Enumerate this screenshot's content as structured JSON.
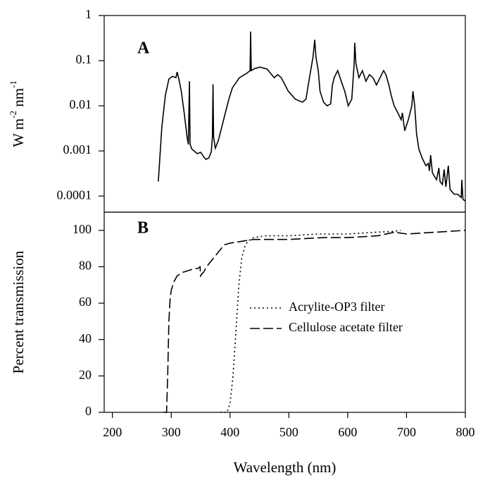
{
  "chart_data": [
    {
      "type": "line",
      "label": "A",
      "ylabel": [
        "W m",
        "-2",
        " nm",
        "-1"
      ],
      "yscale": "log",
      "xlim": [
        186,
        800
      ],
      "ylim": [
        4.4e-05,
        1
      ],
      "yticks": [
        0.0001,
        0.001,
        0.01,
        0.1,
        1
      ],
      "series": [
        {
          "color": "#000000",
          "linestyle": "solid",
          "x": [
            278,
            284,
            290,
            296,
            302,
            308,
            310,
            313,
            317,
            322,
            327,
            329,
            331,
            332,
            335,
            339,
            344,
            350,
            356,
            359,
            364,
            368,
            370,
            371,
            372,
            375,
            380,
            386,
            392,
            398,
            404,
            416,
            428,
            434,
            435,
            436,
            442,
            451,
            463,
            475,
            481,
            487,
            499,
            511,
            523,
            529,
            535,
            541,
            544,
            546,
            550,
            553,
            559,
            565,
            571,
            574,
            577,
            583,
            589,
            595,
            601,
            607,
            611,
            612,
            614,
            619,
            625,
            631,
            637,
            643,
            649,
            655,
            661,
            665,
            670,
            674,
            679,
            685,
            691,
            693,
            697,
            703,
            709,
            711,
            714,
            717,
            721,
            727,
            733,
            737,
            739,
            741,
            744,
            747,
            751,
            755,
            757,
            761,
            764,
            767,
            771,
            774,
            781,
            787,
            793,
            794,
            796,
            800
          ],
          "values": [
            0.00021,
            0.0034,
            0.017,
            0.039,
            0.045,
            0.042,
            0.056,
            0.039,
            0.021,
            0.007,
            0.002,
            0.0014,
            0.035,
            0.0014,
            0.0011,
            0.001,
            0.00087,
            0.00093,
            0.00072,
            0.00065,
            0.0007,
            0.00096,
            0.002,
            0.03,
            0.002,
            0.00115,
            0.0017,
            0.0034,
            0.007,
            0.014,
            0.025,
            0.042,
            0.052,
            0.06,
            0.44,
            0.06,
            0.067,
            0.072,
            0.065,
            0.042,
            0.049,
            0.042,
            0.021,
            0.014,
            0.012,
            0.014,
            0.042,
            0.12,
            0.29,
            0.12,
            0.06,
            0.021,
            0.012,
            0.01,
            0.011,
            0.029,
            0.042,
            0.06,
            0.035,
            0.021,
            0.01,
            0.014,
            0.087,
            0.25,
            0.087,
            0.042,
            0.06,
            0.035,
            0.049,
            0.042,
            0.029,
            0.042,
            0.06,
            0.049,
            0.029,
            0.017,
            0.01,
            0.0071,
            0.0049,
            0.007,
            0.0028,
            0.0049,
            0.01,
            0.021,
            0.01,
            0.0024,
            0.0011,
            0.00068,
            0.00047,
            0.00053,
            0.00036,
            0.00081,
            0.00033,
            0.00028,
            0.00023,
            0.00042,
            0.00021,
            0.00018,
            0.00039,
            0.00016,
            0.00047,
            0.00014,
            0.00011,
            0.00011,
            9.3e-05,
            0.00023,
            8.4e-05,
            7.8e-05
          ]
        }
      ]
    },
    {
      "type": "line",
      "label": "B",
      "ylabel": [
        "Percent transmission"
      ],
      "xlabel": "Wavelength (nm)",
      "xlim": [
        186,
        800
      ],
      "ylim": [
        0,
        110
      ],
      "xticks": [
        200,
        300,
        400,
        500,
        600,
        700,
        800
      ],
      "yticks": [
        0,
        20,
        40,
        60,
        80,
        100
      ],
      "legend": "right",
      "series": [
        {
          "name": "Acrylite-OP3 filter",
          "color": "#000000",
          "linestyle": "dotted",
          "x": [
            383,
            395,
            400,
            405,
            410,
            415,
            420,
            425,
            430,
            440,
            460,
            500,
            550,
            600,
            650,
            680,
            690
          ],
          "values": [
            0,
            0,
            5,
            20,
            45,
            70,
            85,
            91,
            94,
            96,
            97,
            97,
            98,
            98,
            99,
            99.5,
            100
          ]
        },
        {
          "name": "Cellulose acetate filter",
          "color": "#000000",
          "linestyle": "dashed",
          "x": [
            287,
            292,
            294,
            296,
            298,
            300,
            305,
            310,
            320,
            330,
            340,
            345,
            349,
            350,
            352,
            355,
            360,
            370,
            380,
            390,
            400,
            420,
            440,
            460,
            500,
            560,
            600,
            650,
            680,
            700,
            750,
            800
          ],
          "values": [
            0,
            0,
            20,
            50,
            62,
            67,
            72,
            75,
            77,
            78,
            79,
            79,
            80,
            75,
            76,
            77,
            80,
            84,
            88,
            92,
            93,
            94,
            95,
            95,
            95,
            96,
            96,
            97,
            99,
            98,
            99,
            100
          ]
        }
      ]
    }
  ]
}
